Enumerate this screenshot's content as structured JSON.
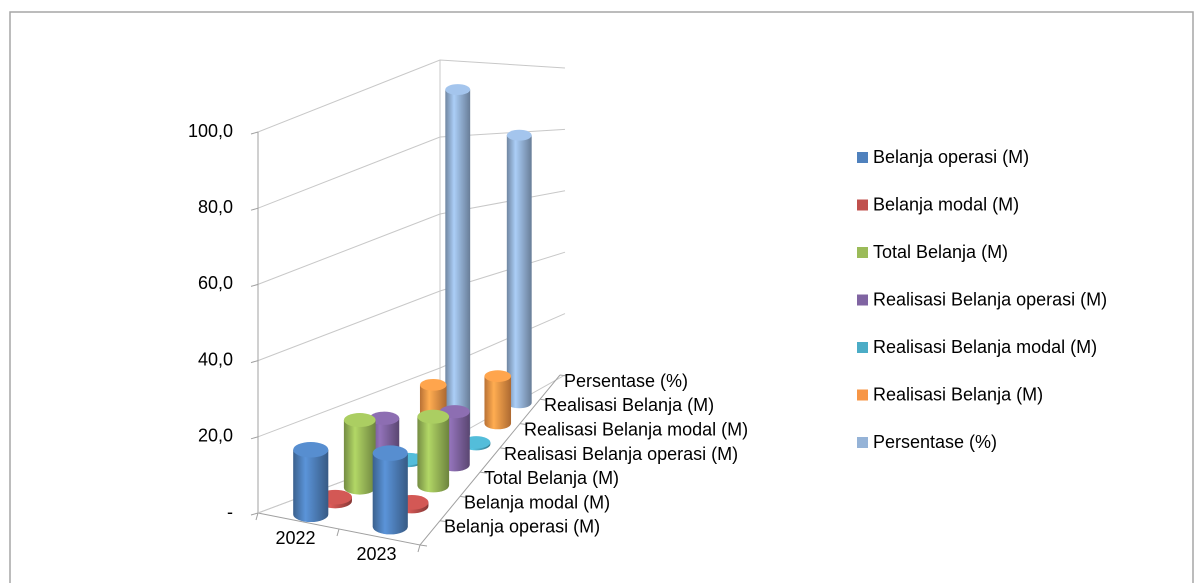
{
  "chart_data": {
    "type": "bar3d",
    "categories": [
      "2022",
      "2023"
    ],
    "series": [
      {
        "name": "Belanja operasi (M)",
        "color": "#4f81bd",
        "values": [
          17,
          19.5
        ]
      },
      {
        "name": "Belanja modal (M)",
        "color": "#c0504d",
        "values": [
          1,
          1
        ]
      },
      {
        "name": "Total Belanja (M)",
        "color": "#9bbb59",
        "values": [
          18,
          19
        ]
      },
      {
        "name": "Realisasi Belanja operasi (M)",
        "color": "#8064a2",
        "values": [
          15,
          15
        ]
      },
      {
        "name": "Realisasi Belanja modal (M)",
        "color": "#4bacc6",
        "values": [
          0.5,
          0.5
        ]
      },
      {
        "name": "Realisasi Belanja (M)",
        "color": "#f79646",
        "values": [
          17,
          14
        ]
      },
      {
        "name": "Persentase (%)",
        "color": "#95b3d7",
        "values": [
          94,
          81
        ]
      }
    ],
    "ylim": [
      0,
      100
    ],
    "yticks": [
      {
        "value": 0,
        "label": "-"
      },
      {
        "value": 20,
        "label": "20,0"
      },
      {
        "value": 40,
        "label": "40,0"
      },
      {
        "value": 60,
        "label": "60,0"
      },
      {
        "value": 80,
        "label": "80,0"
      },
      {
        "value": 100,
        "label": "100,0"
      }
    ],
    "grid": true,
    "legend": "right"
  }
}
